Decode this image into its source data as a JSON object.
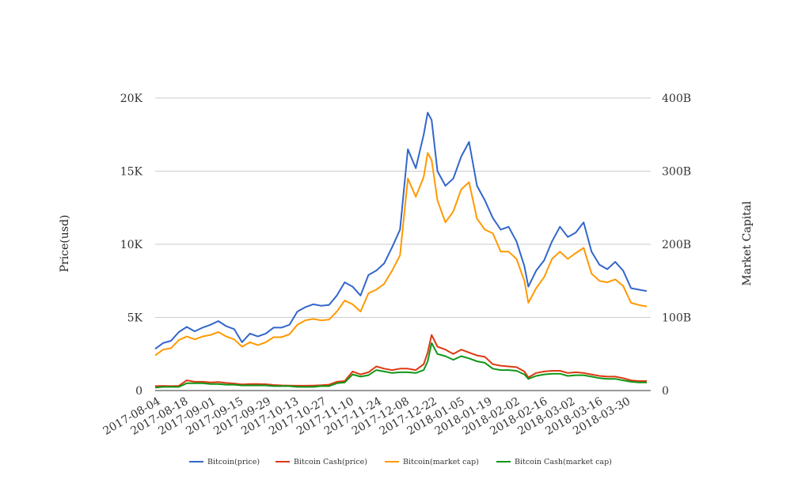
{
  "chart_data": {
    "type": "line",
    "title": "",
    "xlabel": "",
    "ylabel": "Price(usd)",
    "y2label": "Market Capital",
    "ylim": [
      0,
      20000
    ],
    "y2lim": [
      0,
      400
    ],
    "grid": true,
    "legend_position": "bottom",
    "x_range": [
      "2017-08-01",
      "2018-04-09"
    ],
    "x_ticks": [
      "2017-08-04",
      "2017-08-18",
      "2017-09-01",
      "2017-09-15",
      "2017-09-29",
      "2017-10-13",
      "2017-10-27",
      "2017-11-10",
      "2017-11-24",
      "2017-12-08",
      "2017-12-22",
      "2018-01-05",
      "2018-01-19",
      "2018-02-02",
      "2018-02-16",
      "2018-03-02",
      "2018-03-16",
      "2018-03-30"
    ],
    "y_ticks": [
      "0",
      "5K",
      "10K",
      "15K",
      "20K"
    ],
    "y2_ticks": [
      "0",
      "100B",
      "200B",
      "300B",
      "400B"
    ],
    "x": [
      "2017-08-01",
      "2017-08-05",
      "2017-08-09",
      "2017-08-13",
      "2017-08-17",
      "2017-08-21",
      "2017-08-25",
      "2017-08-29",
      "2017-09-02",
      "2017-09-06",
      "2017-09-10",
      "2017-09-14",
      "2017-09-18",
      "2017-09-22",
      "2017-09-26",
      "2017-09-30",
      "2017-10-04",
      "2017-10-08",
      "2017-10-12",
      "2017-10-16",
      "2017-10-20",
      "2017-10-24",
      "2017-10-28",
      "2017-11-01",
      "2017-11-05",
      "2017-11-09",
      "2017-11-13",
      "2017-11-17",
      "2017-11-21",
      "2017-11-25",
      "2017-11-29",
      "2017-12-03",
      "2017-12-07",
      "2017-12-11",
      "2017-12-15",
      "2017-12-17",
      "2017-12-19",
      "2017-12-22",
      "2017-12-26",
      "2017-12-30",
      "2018-01-03",
      "2018-01-07",
      "2018-01-11",
      "2018-01-15",
      "2018-01-19",
      "2018-01-23",
      "2018-01-27",
      "2018-01-31",
      "2018-02-04",
      "2018-02-06",
      "2018-02-10",
      "2018-02-14",
      "2018-02-18",
      "2018-02-22",
      "2018-02-26",
      "2018-03-02",
      "2018-03-06",
      "2018-03-10",
      "2018-03-14",
      "2018-03-18",
      "2018-03-22",
      "2018-03-26",
      "2018-03-30",
      "2018-04-03",
      "2018-04-07"
    ],
    "series": [
      {
        "name": "Bitcoin(price)",
        "axis": "left",
        "color": "#3366cc",
        "values": [
          2850,
          3250,
          3400,
          4000,
          4350,
          4050,
          4300,
          4500,
          4750,
          4400,
          4200,
          3300,
          3900,
          3700,
          3900,
          4300,
          4300,
          4500,
          5400,
          5700,
          5900,
          5800,
          5850,
          6500,
          7400,
          7100,
          6500,
          7900,
          8200,
          8700,
          9800,
          11000,
          16500,
          15200,
          17500,
          19000,
          18500,
          15000,
          14000,
          14500,
          16000,
          17000,
          14000,
          13000,
          11800,
          11000,
          11200,
          10200,
          8500,
          7100,
          8200,
          8900,
          10200,
          11200,
          10500,
          10800,
          11500,
          9500,
          8600,
          8300,
          8800,
          8200,
          7000,
          6900,
          6800
        ]
      },
      {
        "name": "Bitcoin Cash(price)",
        "axis": "left",
        "color": "#dc3912",
        "values": [
          300,
          320,
          300,
          320,
          700,
          600,
          600,
          550,
          580,
          520,
          480,
          420,
          450,
          450,
          430,
          380,
          350,
          340,
          330,
          330,
          340,
          360,
          400,
          600,
          650,
          1300,
          1100,
          1250,
          1650,
          1500,
          1400,
          1500,
          1500,
          1400,
          1800,
          2600,
          3800,
          3000,
          2800,
          2500,
          2800,
          2600,
          2400,
          2300,
          1800,
          1700,
          1650,
          1600,
          1300,
          900,
          1200,
          1300,
          1350,
          1350,
          1200,
          1250,
          1200,
          1100,
          1000,
          950,
          950,
          850,
          700,
          650,
          650
        ]
      },
      {
        "name": "Bitcoin(market cap)",
        "axis": "right",
        "color": "#ff9900",
        "values": [
          48,
          56,
          58,
          69,
          74,
          70,
          74,
          76,
          80,
          74,
          70,
          60,
          66,
          62,
          66,
          73,
          73,
          77,
          90,
          96,
          98,
          96,
          97,
          108,
          123,
          118,
          108,
          133,
          138,
          146,
          164,
          185,
          290,
          265,
          292,
          325,
          315,
          260,
          230,
          245,
          275,
          285,
          235,
          220,
          215,
          190,
          190,
          180,
          150,
          120,
          140,
          155,
          180,
          190,
          180,
          188,
          195,
          160,
          150,
          148,
          152,
          143,
          120,
          117,
          115
        ]
      },
      {
        "name": "Bitcoin Cash(market cap)",
        "axis": "right",
        "color": "#109618",
        "values": [
          4,
          5,
          5,
          5,
          10,
          10,
          10,
          9,
          9,
          8,
          8,
          7,
          7,
          7,
          7,
          6,
          6,
          6,
          5,
          5,
          5,
          6,
          6,
          10,
          11,
          22,
          19,
          21,
          28,
          26,
          24,
          25,
          25,
          24,
          28,
          40,
          65,
          50,
          47,
          42,
          47,
          44,
          40,
          38,
          30,
          28,
          28,
          27,
          22,
          16,
          20,
          22,
          23,
          23,
          20,
          21,
          21,
          19,
          17,
          16,
          16,
          14,
          12,
          11,
          11
        ]
      }
    ]
  }
}
